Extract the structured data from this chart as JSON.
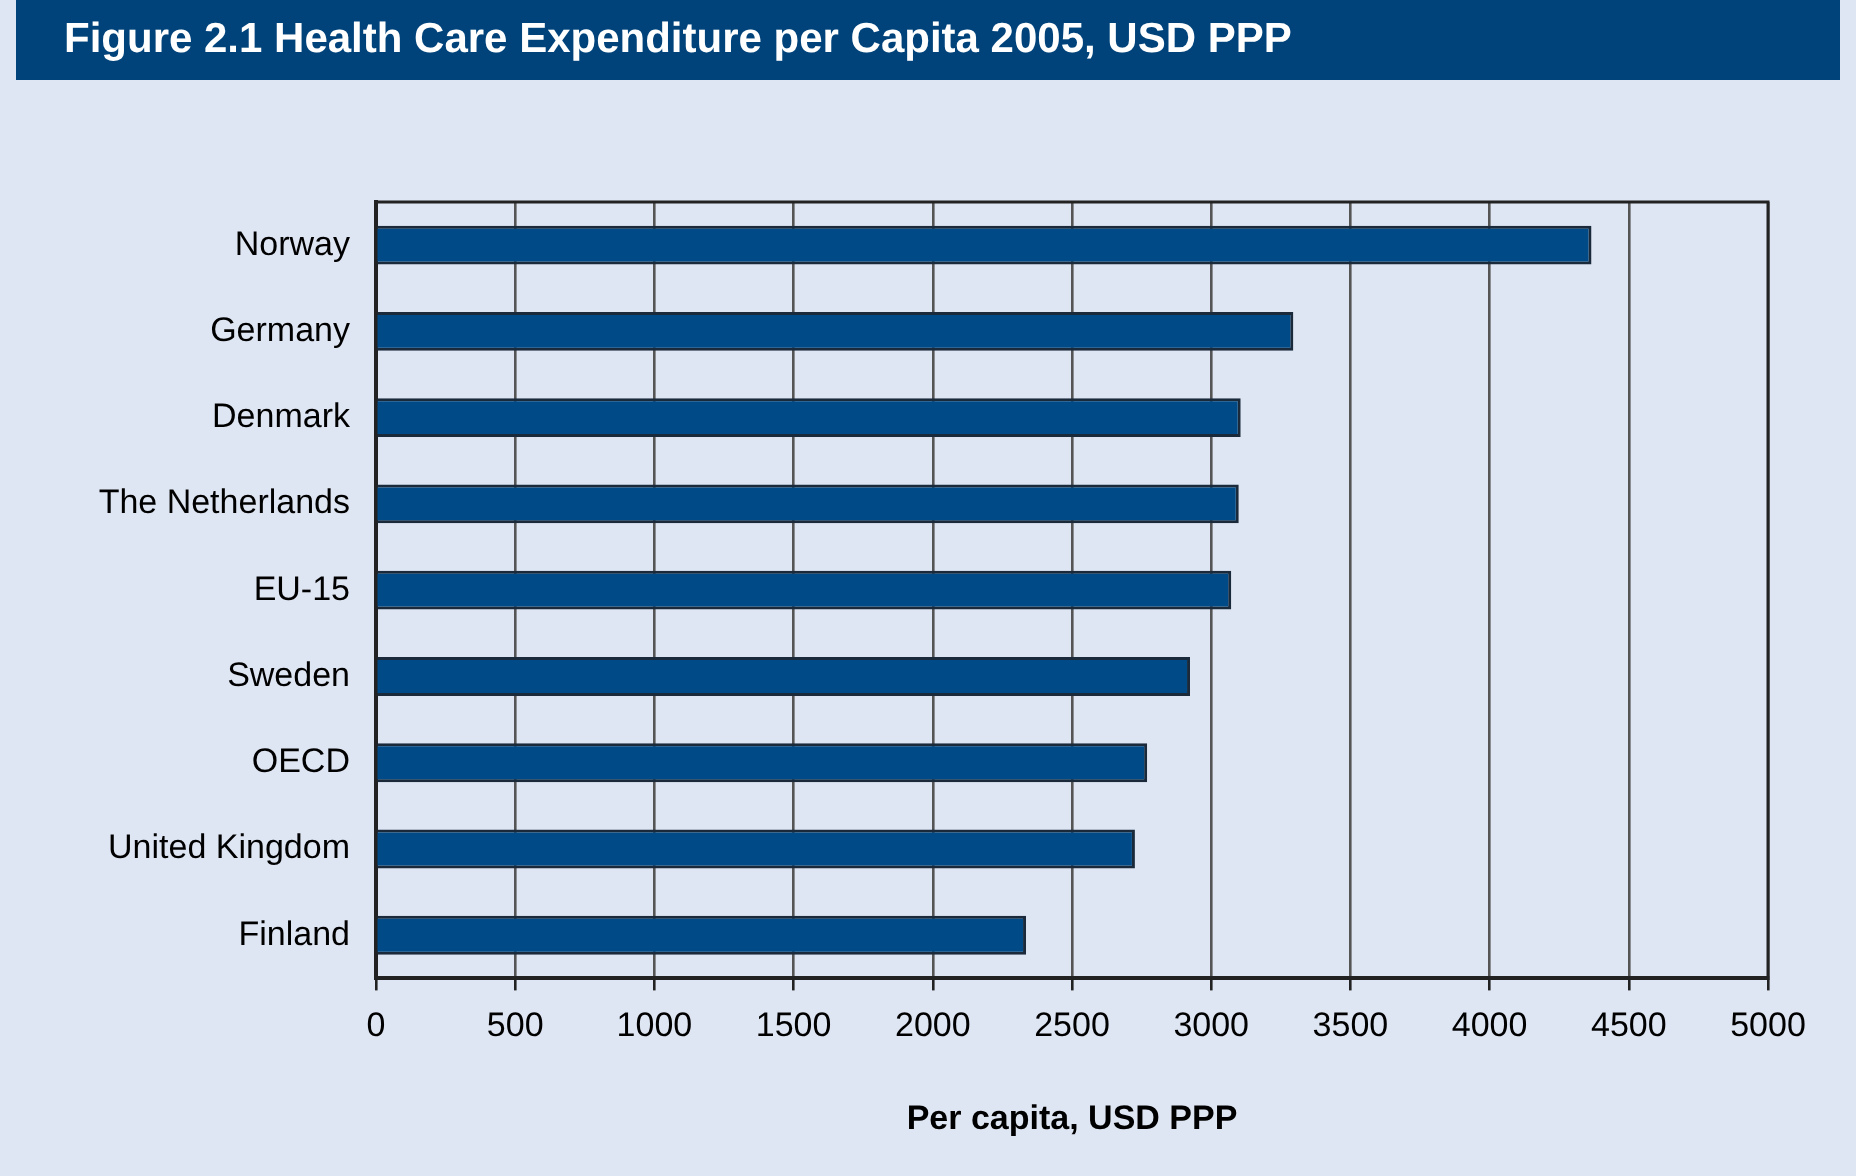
{
  "chart_data": {
    "type": "bar",
    "orientation": "horizontal",
    "title": "Figure 2.1 Health Care Expenditure per Capita 2005, USD PPP",
    "xlabel": "Per capita, USD PPP",
    "categories": [
      "Norway",
      "Germany",
      "Denmark",
      "The Netherlands",
      "EU-15",
      "Sweden",
      "OECD",
      "United Kingdom",
      "Finland"
    ],
    "values": [
      4366,
      3295,
      3106,
      3099,
      3072,
      2924,
      2770,
      2726,
      2335
    ],
    "color": "#004b87",
    "xlim": [
      0,
      5000
    ],
    "xticks": [
      0,
      500,
      1000,
      1500,
      2000,
      2500,
      3000,
      3500,
      4000,
      4500,
      5000
    ],
    "grid": "x",
    "legend": false
  }
}
